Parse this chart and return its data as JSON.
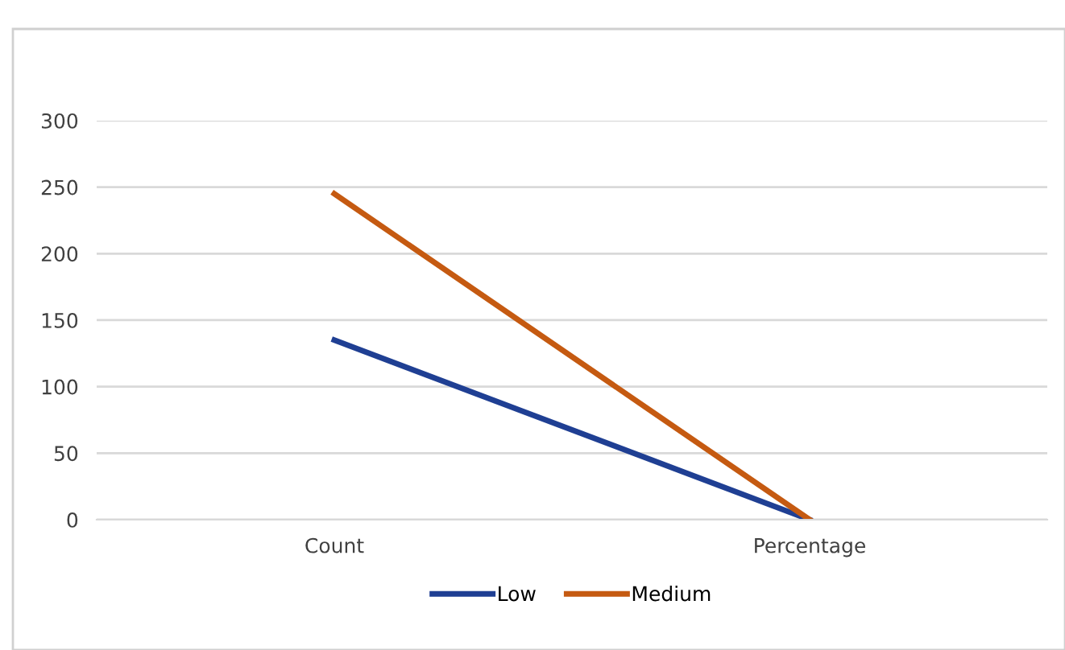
{
  "chart_data": {
    "type": "line",
    "categories": [
      "Count",
      "Percentage"
    ],
    "series": [
      {
        "name": "Low",
        "color": "#1f3f93",
        "values": [
          135,
          0
        ]
      },
      {
        "name": "Medium",
        "color": "#c55a11",
        "values": [
          245,
          0
        ]
      }
    ],
    "ylim": [
      0,
      300
    ],
    "yticks": [
      0,
      50,
      100,
      150,
      200,
      250,
      300
    ],
    "grid": "y",
    "legend": "bottom",
    "marker": "none",
    "line_style": "solid"
  }
}
